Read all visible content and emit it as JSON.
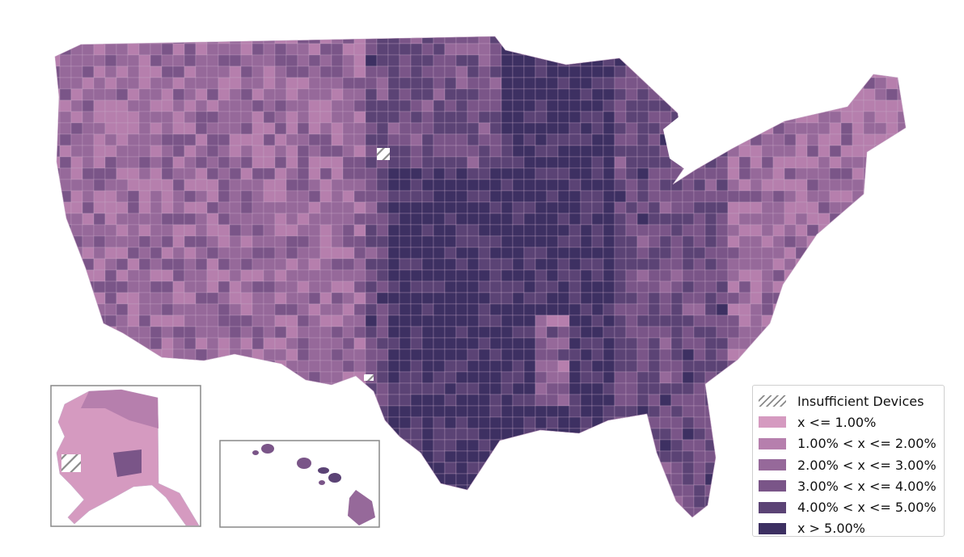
{
  "map": {
    "region": "United States counties",
    "projection": "albers-usa",
    "colors": {
      "insufficient": "#ffffff",
      "hatch": "#8a8a8a",
      "bin1": "#d59ac0",
      "bin2": "#b67fad",
      "bin3": "#96699a",
      "bin4": "#7a5588",
      "bin5": "#5b4375",
      "bin6": "#3d3062",
      "border": "#c9aac8",
      "inset_frame": "#888888"
    },
    "insets": [
      "Alaska",
      "Hawaii"
    ]
  },
  "legend": {
    "placement": "bottom-right",
    "items": [
      {
        "label": "Insufficient Devices",
        "color": "hatch"
      },
      {
        "label": "x <= 1.00%",
        "color": "#d59ac0"
      },
      {
        "label": "1.00% < x <= 2.00%",
        "color": "#b67fad"
      },
      {
        "label": "2.00% < x <= 3.00%",
        "color": "#96699a"
      },
      {
        "label": "3.00% < x <= 4.00%",
        "color": "#7a5588"
      },
      {
        "label": "4.00% < x <= 5.00%",
        "color": "#5b4375"
      },
      {
        "label": "x > 5.00%",
        "color": "#3d3062"
      }
    ]
  }
}
